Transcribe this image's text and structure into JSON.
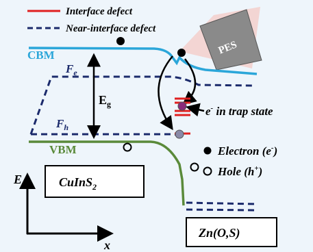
{
  "legend": {
    "items": [
      {
        "label": "Interface defect"
      },
      {
        "label": "Near-interface defect"
      }
    ]
  },
  "bands": {
    "cbm": "CBM",
    "vbm": "VBM",
    "fe": {
      "symbol": "F",
      "sub": "e"
    },
    "fh": {
      "symbol": "F",
      "sub": "h"
    },
    "eg": {
      "symbol": "E",
      "sub": "g"
    }
  },
  "trap_label": {
    "symbol": "e",
    "sup": "-",
    "text": " in trap state"
  },
  "carriers": {
    "electron": {
      "text": "Electron (e",
      "sup": "-",
      "end": ")"
    },
    "hole": {
      "text": "Hole (h",
      "sup": "+",
      "end": ")"
    }
  },
  "probe": "PES",
  "materials": [
    {
      "text": "CuInS",
      "sub": "2"
    },
    {
      "text": "Zn(O,S)"
    }
  ],
  "axes": {
    "y": "E",
    "x": "x"
  }
}
